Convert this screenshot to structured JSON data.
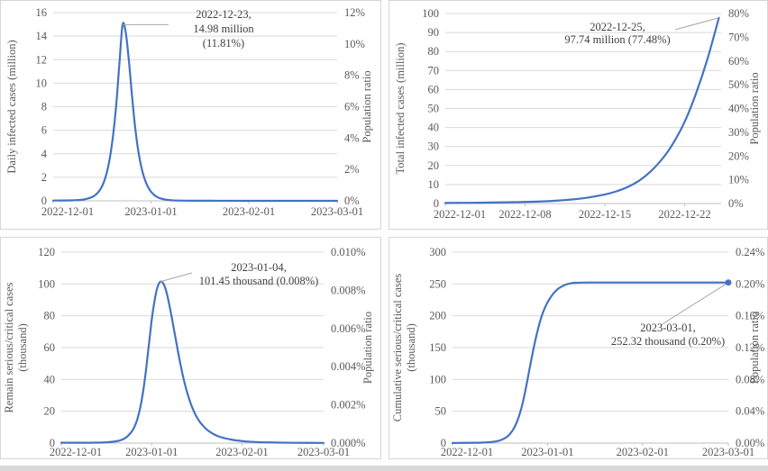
{
  "page": {
    "background": "#ffffff",
    "series_color": "#4472C4",
    "grid_color": "#d9d9d9",
    "axis_line_color": "#bfbfbf",
    "tick_text_color": "#595959",
    "annotation_text_color": "#404040",
    "leader_line_color": "#a6a6a6",
    "panel_border_color": "#d6d6d6"
  },
  "chart_data": [
    {
      "type": "line",
      "ylabel_left": "Daily infected cases (million)",
      "ylabel_left_line2": "",
      "ylabel_right": "Population ratio",
      "y_left_ticks": [
        "16",
        "14",
        "12",
        "10",
        "8",
        "6",
        "4",
        "2",
        "0"
      ],
      "y_left_range": [
        0,
        16
      ],
      "y_right_ticks": [
        "12%",
        "10%",
        "8%",
        "6%",
        "4%",
        "2%",
        "0%"
      ],
      "x_range_days": [
        0,
        90
      ],
      "x_ticks": [
        {
          "label": "2022-12-01",
          "day": 0
        },
        {
          "label": "2023-01-01",
          "day": 31
        },
        {
          "label": "2023-02-01",
          "day": 62
        },
        {
          "label": "2023-03-01",
          "day": 90
        }
      ],
      "series": {
        "name": "Daily infected cases",
        "points": [
          [
            0,
            0.02
          ],
          [
            6,
            0.04
          ],
          [
            8,
            0.07
          ],
          [
            10,
            0.13
          ],
          [
            12,
            0.28
          ],
          [
            13,
            0.42
          ],
          [
            14,
            0.65
          ],
          [
            15,
            1.0
          ],
          [
            16,
            1.55
          ],
          [
            17,
            2.4
          ],
          [
            18,
            3.7
          ],
          [
            19,
            5.6
          ],
          [
            20,
            8.2
          ],
          [
            21,
            11.7
          ],
          [
            22,
            14.98
          ],
          [
            23,
            14.3
          ],
          [
            24,
            11.9
          ],
          [
            25,
            8.9
          ],
          [
            26,
            6.2
          ],
          [
            27,
            4.2
          ],
          [
            28,
            2.8
          ],
          [
            29,
            1.85
          ],
          [
            30,
            1.2
          ],
          [
            31,
            0.78
          ],
          [
            32,
            0.5
          ],
          [
            33,
            0.32
          ],
          [
            34,
            0.21
          ],
          [
            35,
            0.14
          ],
          [
            36,
            0.09
          ],
          [
            38,
            0.04
          ],
          [
            40,
            0.02
          ],
          [
            44,
            0.01
          ],
          [
            50,
            0.005
          ],
          [
            60,
            0.003
          ],
          [
            90,
            0.002
          ]
        ]
      },
      "annotation": {
        "lines": [
          "2022-12-23,",
          "14.98 million",
          "(11.81%)"
        ],
        "point": {
          "date": "2022-12-23",
          "day": 22,
          "value": 14.98
        },
        "marker": false
      }
    },
    {
      "type": "line",
      "ylabel_left": "Total infected cases (million)",
      "ylabel_left_line2": "",
      "ylabel_right": "Population ratio",
      "y_left_ticks": [
        "100",
        "90",
        "80",
        "70",
        "60",
        "50",
        "40",
        "30",
        "20",
        "10",
        "0"
      ],
      "y_left_range": [
        0,
        100
      ],
      "y_right_ticks": [
        "80%",
        "70%",
        "60%",
        "50%",
        "40%",
        "30%",
        "20%",
        "10%",
        "0%"
      ],
      "x_range_days": [
        0,
        24.2
      ],
      "x_ticks": [
        {
          "label": "2022-12-01",
          "day": 0
        },
        {
          "label": "2022-12-08",
          "day": 7
        },
        {
          "label": "2022-12-15",
          "day": 14
        },
        {
          "label": "2022-12-22",
          "day": 21
        }
      ],
      "series": {
        "name": "Total infected cases",
        "points": [
          [
            0,
            0.3
          ],
          [
            3,
            0.45
          ],
          [
            6,
            0.7
          ],
          [
            8,
            1.0
          ],
          [
            10,
            1.6
          ],
          [
            12,
            2.7
          ],
          [
            14,
            4.8
          ],
          [
            15,
            6.4
          ],
          [
            16,
            8.7
          ],
          [
            17,
            12
          ],
          [
            18,
            16.8
          ],
          [
            19,
            23.2
          ],
          [
            20,
            31.8
          ],
          [
            21,
            43
          ],
          [
            22,
            58
          ],
          [
            23,
            76
          ],
          [
            24,
            97.74
          ]
        ]
      },
      "annotation": {
        "lines": [
          "2022-12-25,",
          "97.74 million (77.48%)"
        ],
        "point": {
          "date": "2022-12-25",
          "day": 24,
          "value": 97.74
        },
        "marker": false
      }
    },
    {
      "type": "line",
      "ylabel_left": "Remain serious/critical cases",
      "ylabel_left_line2": "(thousand)",
      "ylabel_right": "Population ratio",
      "y_left_ticks": [
        "120",
        "100",
        "80",
        "60",
        "40",
        "20",
        "0"
      ],
      "y_left_range": [
        0,
        120
      ],
      "y_right_ticks": [
        "0.010%",
        "0.008%",
        "0.006%",
        "0.004%",
        "0.002%",
        "0.000%"
      ],
      "x_range_days": [
        0,
        90
      ],
      "x_ticks": [
        {
          "label": "2022-12-01",
          "day": 0
        },
        {
          "label": "2023-01-01",
          "day": 31
        },
        {
          "label": "2023-02-01",
          "day": 62
        },
        {
          "label": "2023-03-01",
          "day": 90
        }
      ],
      "series": {
        "name": "Remain serious/critical cases",
        "points": [
          [
            0,
            0.2
          ],
          [
            10,
            0.25
          ],
          [
            14,
            0.35
          ],
          [
            16,
            0.55
          ],
          [
            18,
            0.9
          ],
          [
            20,
            1.6
          ],
          [
            22,
            3.2
          ],
          [
            24,
            6.8
          ],
          [
            25,
            9.8
          ],
          [
            26,
            14.5
          ],
          [
            27,
            21.5
          ],
          [
            28,
            31.5
          ],
          [
            29,
            45
          ],
          [
            30,
            61
          ],
          [
            31,
            77
          ],
          [
            32,
            89.5
          ],
          [
            33,
            98
          ],
          [
            34,
            101.45
          ],
          [
            35,
            100.3
          ],
          [
            36,
            95.5
          ],
          [
            37,
            87.5
          ],
          [
            38,
            78
          ],
          [
            39,
            68
          ],
          [
            40,
            58
          ],
          [
            41,
            48.5
          ],
          [
            42,
            40
          ],
          [
            43,
            33
          ],
          [
            44,
            27
          ],
          [
            45,
            22
          ],
          [
            46,
            18
          ],
          [
            47,
            14.8
          ],
          [
            48,
            12.2
          ],
          [
            50,
            8.4
          ],
          [
            52,
            5.9
          ],
          [
            54,
            4.2
          ],
          [
            56,
            3.1
          ],
          [
            58,
            2.3
          ],
          [
            60,
            1.7
          ],
          [
            63,
            1.1
          ],
          [
            66,
            0.75
          ],
          [
            70,
            0.45
          ],
          [
            75,
            0.28
          ],
          [
            80,
            0.18
          ],
          [
            90,
            0.12
          ]
        ]
      },
      "annotation": {
        "lines": [
          "2023-01-04,",
          "101.45 thousand (0.008%)"
        ],
        "point": {
          "date": "2023-01-04",
          "day": 34,
          "value": 101.45
        },
        "marker": false
      }
    },
    {
      "type": "line",
      "ylabel_left": "Cumulative serious/critical cases",
      "ylabel_left_line2": "(thousand)",
      "ylabel_right": "Population ratio",
      "y_left_ticks": [
        "300",
        "250",
        "200",
        "150",
        "100",
        "50",
        "0"
      ],
      "y_left_range": [
        0,
        300
      ],
      "y_right_ticks": [
        "0.24%",
        "0.20%",
        "0.16%",
        "0.12%",
        "0.08%",
        "0.04%",
        "0.00%"
      ],
      "x_range_days": [
        0,
        90
      ],
      "x_ticks": [
        {
          "label": "2022-12-01",
          "day": 0
        },
        {
          "label": "2023-01-01",
          "day": 31
        },
        {
          "label": "2023-02-01",
          "day": 62
        },
        {
          "label": "2023-03-01",
          "day": 90
        }
      ],
      "series": {
        "name": "Cumulative serious/critical cases",
        "points": [
          [
            0,
            0.2
          ],
          [
            8,
            0.5
          ],
          [
            10,
            0.8
          ],
          [
            12,
            1.4
          ],
          [
            14,
            2.6
          ],
          [
            15,
            3.6
          ],
          [
            16,
            5.1
          ],
          [
            17,
            7.4
          ],
          [
            18,
            10.8
          ],
          [
            19,
            15.8
          ],
          [
            20,
            23
          ],
          [
            21,
            33
          ],
          [
            22,
            47
          ],
          [
            23,
            65
          ],
          [
            24,
            88
          ],
          [
            25,
            113
          ],
          [
            26,
            138
          ],
          [
            27,
            161
          ],
          [
            28,
            181
          ],
          [
            29,
            198
          ],
          [
            30,
            211
          ],
          [
            31,
            221
          ],
          [
            32,
            229
          ],
          [
            33,
            235.5
          ],
          [
            34,
            240.5
          ],
          [
            35,
            244.2
          ],
          [
            36,
            247
          ],
          [
            37,
            249
          ],
          [
            38,
            250.4
          ],
          [
            39,
            251.3
          ],
          [
            40,
            251.9
          ],
          [
            42,
            252.2
          ],
          [
            45,
            252.3
          ],
          [
            50,
            252.32
          ],
          [
            70,
            252.32
          ],
          [
            90,
            252.32
          ]
        ]
      },
      "annotation": {
        "lines": [
          "2023-03-01,",
          "252.32  thousand (0.20%)"
        ],
        "point": {
          "date": "2023-03-01",
          "day": 90,
          "value": 252.32
        },
        "marker": true
      }
    }
  ]
}
